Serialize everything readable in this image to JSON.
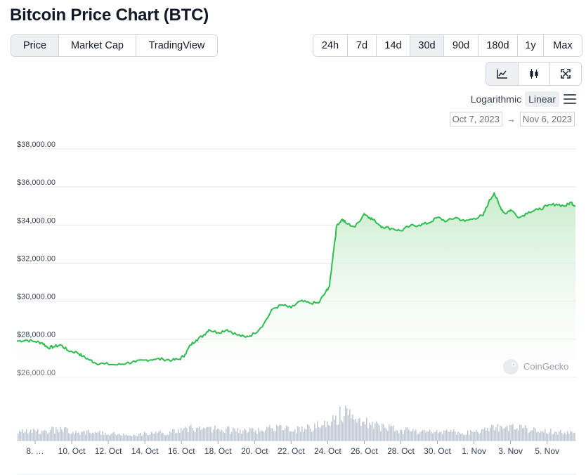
{
  "title": "Bitcoin Price Chart (BTC)",
  "tabs": [
    "Price",
    "Market Cap",
    "TradingView"
  ],
  "active_tab": "Price",
  "ranges": [
    "24h",
    "7d",
    "14d",
    "30d",
    "90d",
    "180d",
    "1y",
    "Max"
  ],
  "active_range": "30d",
  "view_icons": [
    "line-chart-icon",
    "candlestick-icon",
    "fullscreen-icon"
  ],
  "scale_options": [
    "Logarithmic",
    "Linear"
  ],
  "active_scale": "Linear",
  "date_from": "Oct 7, 2023",
  "date_to": "Nov 6, 2023",
  "date_arrow": "→",
  "watermark": "CoinGecko",
  "colors": {
    "line": "#2ebd4f",
    "fill_top": "#c6ebc9",
    "volume": "#c3cad6",
    "grid": "#e5e7eb"
  },
  "chart_data": {
    "type": "area",
    "y_tick_labels": [
      "$26,000.00",
      "$28,000.00",
      "$30,000.00",
      "$32,000.00",
      "$34,000.00",
      "$36,000.00",
      "$38,000.00"
    ],
    "y_ticks": [
      26000,
      28000,
      30000,
      32000,
      34000,
      36000,
      38000
    ],
    "ylim": [
      25700,
      38000
    ],
    "x_tick_labels": [
      "8. …",
      "10. Oct",
      "12. Oct",
      "14. Oct",
      "16. Oct",
      "18. Oct",
      "20. Oct",
      "22. Oct",
      "24. Oct",
      "26. Oct",
      "28. Oct",
      "30. Oct",
      "1. Nov",
      "3. Nov",
      "5. Nov"
    ],
    "x_ticks_day": [
      1,
      3,
      5,
      7,
      9,
      11,
      13,
      15,
      17,
      19,
      21,
      23,
      25,
      27,
      29
    ],
    "x_unit": "days since Oct 7, 2023",
    "xlim": [
      0,
      30.55
    ],
    "series": [
      {
        "name": "Price",
        "points": [
          [
            0.0,
            27900
          ],
          [
            0.5,
            27950
          ],
          [
            1.0,
            27880
          ],
          [
            1.4,
            27800
          ],
          [
            1.7,
            27550
          ],
          [
            2.0,
            27600
          ],
          [
            2.4,
            27700
          ],
          [
            2.8,
            27400
          ],
          [
            3.3,
            27300
          ],
          [
            3.6,
            27100
          ],
          [
            4.0,
            26900
          ],
          [
            4.3,
            26750
          ],
          [
            4.8,
            26700
          ],
          [
            5.5,
            26650
          ],
          [
            6.0,
            26750
          ],
          [
            6.5,
            26800
          ],
          [
            7.0,
            26900
          ],
          [
            7.5,
            26950
          ],
          [
            8.0,
            26950
          ],
          [
            8.5,
            26900
          ],
          [
            8.9,
            26950
          ],
          [
            9.2,
            27200
          ],
          [
            9.5,
            27700
          ],
          [
            9.8,
            27950
          ],
          [
            10.2,
            28200
          ],
          [
            10.5,
            28500
          ],
          [
            11.0,
            28350
          ],
          [
            11.5,
            28500
          ],
          [
            12.0,
            28250
          ],
          [
            12.5,
            28100
          ],
          [
            13.0,
            28300
          ],
          [
            13.5,
            28800
          ],
          [
            14.0,
            29600
          ],
          [
            14.5,
            29800
          ],
          [
            15.0,
            29650
          ],
          [
            15.5,
            30000
          ],
          [
            16.0,
            29900
          ],
          [
            16.5,
            29900
          ],
          [
            16.9,
            30500
          ],
          [
            17.1,
            30800
          ],
          [
            17.3,
            32500
          ],
          [
            17.5,
            34000
          ],
          [
            17.8,
            34300
          ],
          [
            18.0,
            34100
          ],
          [
            18.5,
            33900
          ],
          [
            19.0,
            34600
          ],
          [
            19.3,
            34400
          ],
          [
            19.6,
            34200
          ],
          [
            20.0,
            33900
          ],
          [
            20.6,
            33800
          ],
          [
            21.0,
            33700
          ],
          [
            21.5,
            33950
          ],
          [
            22.0,
            34000
          ],
          [
            22.5,
            34100
          ],
          [
            23.0,
            34400
          ],
          [
            23.5,
            34200
          ],
          [
            24.0,
            34400
          ],
          [
            24.5,
            34200
          ],
          [
            25.0,
            34350
          ],
          [
            25.5,
            34500
          ],
          [
            25.8,
            35200
          ],
          [
            26.1,
            35700
          ],
          [
            26.4,
            35000
          ],
          [
            26.7,
            34600
          ],
          [
            27.0,
            34800
          ],
          [
            27.5,
            34400
          ],
          [
            28.0,
            34700
          ],
          [
            28.5,
            34800
          ],
          [
            29.0,
            35000
          ],
          [
            29.5,
            35100
          ],
          [
            30.0,
            35000
          ],
          [
            30.3,
            35200
          ],
          [
            30.55,
            35000
          ]
        ]
      }
    ],
    "volume_profile": [
      [
        0.0,
        0.28
      ],
      [
        1.0,
        0.3
      ],
      [
        2.0,
        0.34
      ],
      [
        3.0,
        0.32
      ],
      [
        4.0,
        0.26
      ],
      [
        5.0,
        0.22
      ],
      [
        6.0,
        0.2
      ],
      [
        7.0,
        0.22
      ],
      [
        8.0,
        0.25
      ],
      [
        9.0,
        0.32
      ],
      [
        9.8,
        0.42
      ],
      [
        10.5,
        0.38
      ],
      [
        11.5,
        0.34
      ],
      [
        12.5,
        0.3
      ],
      [
        13.5,
        0.36
      ],
      [
        14.5,
        0.44
      ],
      [
        15.5,
        0.34
      ],
      [
        16.5,
        0.48
      ],
      [
        17.2,
        0.7
      ],
      [
        17.8,
        0.86
      ],
      [
        18.2,
        0.78
      ],
      [
        18.8,
        0.62
      ],
      [
        19.5,
        0.48
      ],
      [
        20.5,
        0.38
      ],
      [
        21.5,
        0.3
      ],
      [
        22.5,
        0.26
      ],
      [
        23.5,
        0.3
      ],
      [
        24.5,
        0.24
      ],
      [
        25.2,
        0.3
      ],
      [
        26.0,
        0.38
      ],
      [
        26.5,
        0.42
      ],
      [
        27.2,
        0.4
      ],
      [
        28.0,
        0.36
      ],
      [
        28.8,
        0.3
      ],
      [
        29.5,
        0.28
      ],
      [
        30.55,
        0.26
      ]
    ]
  }
}
